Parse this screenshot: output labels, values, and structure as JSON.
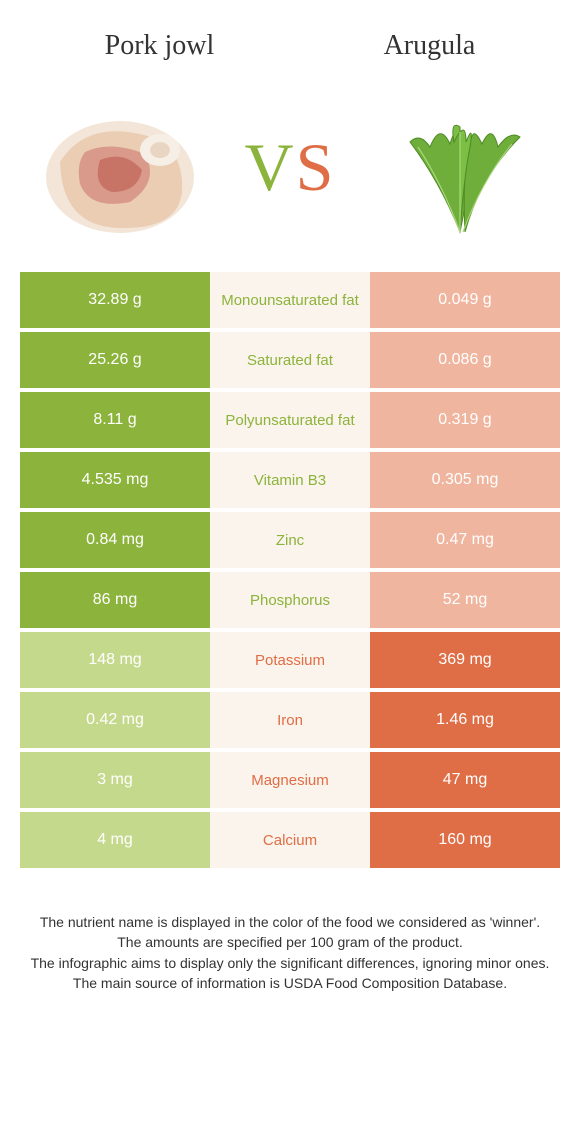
{
  "colors": {
    "left_winner": "#8cb33b",
    "left_loser": "#c5d98c",
    "right_winner": "#df6d45",
    "right_loser": "#f0b59f",
    "mid_bg": "#fbf4ec",
    "text_dark": "#333333"
  },
  "header": {
    "left_title": "Pork jowl",
    "right_title": "Arugula"
  },
  "vs": {
    "v": "V",
    "s": "S"
  },
  "rows": [
    {
      "label": "Monounsaturated fat",
      "left": "32.89 g",
      "right": "0.049 g",
      "winner": "left"
    },
    {
      "label": "Saturated fat",
      "left": "25.26 g",
      "right": "0.086 g",
      "winner": "left"
    },
    {
      "label": "Polyunsaturated fat",
      "left": "8.11 g",
      "right": "0.319 g",
      "winner": "left"
    },
    {
      "label": "Vitamin B3",
      "left": "4.535 mg",
      "right": "0.305 mg",
      "winner": "left"
    },
    {
      "label": "Zinc",
      "left": "0.84 mg",
      "right": "0.47 mg",
      "winner": "left"
    },
    {
      "label": "Phosphorus",
      "left": "86 mg",
      "right": "52 mg",
      "winner": "left"
    },
    {
      "label": "Potassium",
      "left": "148 mg",
      "right": "369 mg",
      "winner": "right"
    },
    {
      "label": "Iron",
      "left": "0.42 mg",
      "right": "1.46 mg",
      "winner": "right"
    },
    {
      "label": "Magnesium",
      "left": "3 mg",
      "right": "47 mg",
      "winner": "right"
    },
    {
      "label": "Calcium",
      "left": "4 mg",
      "right": "160 mg",
      "winner": "right"
    }
  ],
  "footer": {
    "line1": "The nutrient name is displayed in the color of the food we considered as 'winner'.",
    "line2": "The amounts are specified per 100 gram of the product.",
    "line3": "The infographic aims to display only the significant differences, ignoring minor ones.",
    "line4": "The main source of information is USDA Food Composition Database."
  }
}
